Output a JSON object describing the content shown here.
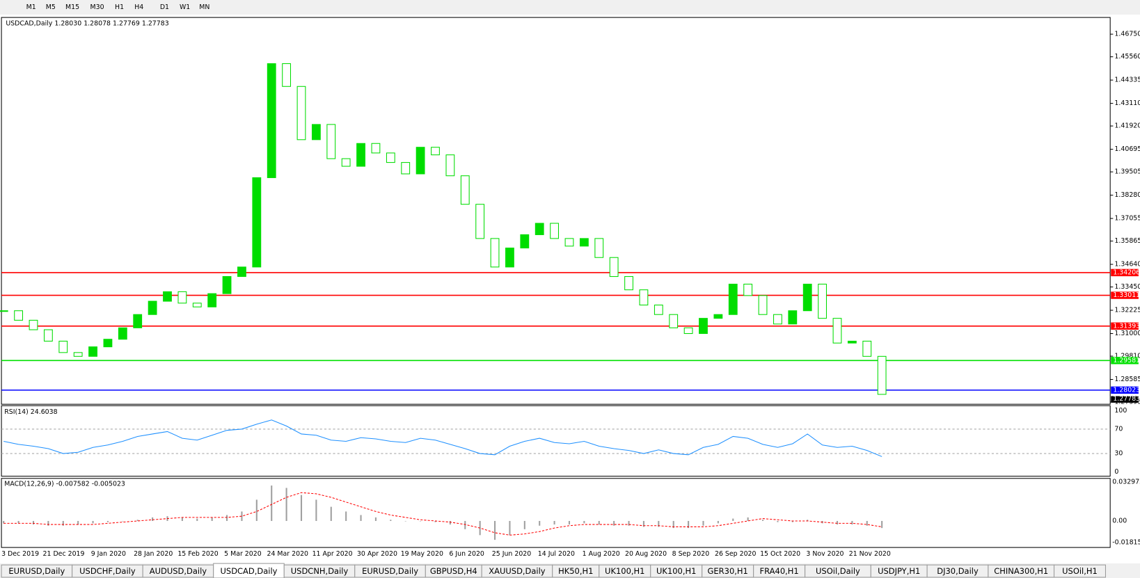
{
  "toolbar": {
    "timeframes": [
      "M1",
      "M5",
      "M15",
      "M30",
      "H1",
      "H4",
      "D1",
      "W1",
      "MN"
    ]
  },
  "chart_data": {
    "type": "candlestick",
    "symbol": "USDCAD,Daily",
    "ohlc": [
      "1.28030",
      "1.28078",
      "1.27769",
      "1.27783"
    ],
    "dates": [
      "3 Dec 2019",
      "21 Dec 2019",
      "9 Jan 2020",
      "28 Jan 2020",
      "15 Feb 2020",
      "5 Mar 2020",
      "24 Mar 2020",
      "11 Apr 2020",
      "30 Apr 2020",
      "19 May 2020",
      "6 Jun 2020",
      "25 Jun 2020",
      "14 Jul 2020",
      "1 Aug 2020",
      "20 Aug 2020",
      "8 Sep 2020",
      "26 Sep 2020",
      "15 Oct 2020",
      "3 Nov 2020",
      "21 Nov 2020"
    ],
    "close": [
      1.322,
      1.317,
      1.312,
      1.306,
      1.3,
      1.298,
      1.303,
      1.307,
      1.313,
      1.32,
      1.327,
      1.332,
      1.326,
      1.324,
      1.331,
      1.34,
      1.345,
      1.392,
      1.452,
      1.44,
      1.412,
      1.42,
      1.402,
      1.398,
      1.41,
      1.405,
      1.4,
      1.394,
      1.408,
      1.404,
      1.393,
      1.378,
      1.36,
      1.345,
      1.355,
      1.362,
      1.368,
      1.36,
      1.356,
      1.36,
      1.35,
      1.34,
      1.333,
      1.325,
      1.32,
      1.313,
      1.31,
      1.318,
      1.32,
      1.336,
      1.33,
      1.32,
      1.315,
      1.322,
      1.336,
      1.318,
      1.305,
      1.306,
      1.298,
      1.278
    ],
    "up_color": "#00dd00",
    "ylim": [
      1.27395,
      1.4675
    ],
    "yticks": [
      {
        "value": 1.4675,
        "label": "1.46750"
      },
      {
        "value": 1.4556,
        "label": "1.45560"
      },
      1.44335,
      {
        "value": 1.4311,
        "label": "1.43110"
      },
      {
        "value": 1.4192,
        "label": "1.41920"
      },
      1.40695,
      1.39505,
      {
        "value": 1.3828,
        "label": "1.38280"
      },
      1.37055,
      1.35865,
      {
        "value": 1.3464,
        "label": "1.34640"
      },
      {
        "value": 1.3345,
        "label": "1.33450"
      },
      1.32225,
      {
        "value": 1.31,
        "label": "1.31000"
      },
      {
        "value": 1.2981,
        "label": "1.29810"
      },
      1.28585,
      1.27395
    ],
    "levels": [
      {
        "value": 1.34206,
        "color": "#ff0000"
      },
      {
        "value": 1.33011,
        "color": "#ff0000"
      },
      {
        "value": 1.31393,
        "color": "#ff0000"
      },
      {
        "value": 1.29581,
        "color": "#00e000"
      },
      {
        "value": 1.28023,
        "color": "#0000ff"
      }
    ],
    "last": 1.27783,
    "rsi": {
      "title": "RSI(14) 24.6038",
      "color": "#1e90ff",
      "ylim": [
        0,
        100
      ],
      "yticks": [
        100,
        70,
        30,
        0
      ],
      "values": [
        50,
        45,
        42,
        38,
        30,
        32,
        40,
        44,
        50,
        58,
        62,
        66,
        55,
        52,
        60,
        68,
        70,
        78,
        85,
        75,
        62,
        60,
        52,
        50,
        56,
        54,
        50,
        48,
        55,
        52,
        45,
        38,
        30,
        28,
        42,
        50,
        55,
        48,
        46,
        50,
        42,
        38,
        35,
        30,
        36,
        30,
        28,
        40,
        45,
        58,
        55,
        45,
        40,
        46,
        62,
        44,
        40,
        42,
        35,
        25
      ]
    },
    "macd": {
      "title": "MACD(12,26,9) -0.007582 -0.005023",
      "ylim": [
        -0.018154,
        0.032972
      ],
      "yticks": [
        0.032972,
        {
          "value": 0,
          "label": "0.00"
        },
        -0.018154
      ],
      "signal_color": "#ff0000",
      "histogram": [
        -0.002,
        -0.002,
        -0.003,
        -0.004,
        -0.004,
        -0.003,
        -0.002,
        -0.001,
        0.0,
        0.001,
        0.003,
        0.004,
        0.003,
        0.002,
        0.003,
        0.005,
        0.008,
        0.018,
        0.03,
        0.028,
        0.022,
        0.018,
        0.012,
        0.008,
        0.005,
        0.003,
        0.001,
        0.0,
        0.0,
        -0.001,
        -0.003,
        -0.007,
        -0.012,
        -0.016,
        -0.012,
        -0.007,
        -0.004,
        -0.003,
        -0.003,
        -0.002,
        -0.003,
        -0.004,
        -0.004,
        -0.005,
        -0.005,
        -0.006,
        -0.006,
        -0.004,
        -0.002,
        0.002,
        0.003,
        0.001,
        -0.001,
        -0.001,
        0.001,
        -0.002,
        -0.003,
        -0.003,
        -0.004,
        -0.006
      ],
      "signal": [
        -0.002,
        -0.002,
        -0.002,
        -0.003,
        -0.003,
        -0.003,
        -0.003,
        -0.002,
        -0.001,
        0.0,
        0.001,
        0.002,
        0.003,
        0.003,
        0.003,
        0.003,
        0.004,
        0.008,
        0.014,
        0.02,
        0.024,
        0.023,
        0.02,
        0.016,
        0.012,
        0.008,
        0.005,
        0.003,
        0.001,
        0.0,
        -0.001,
        -0.003,
        -0.006,
        -0.01,
        -0.012,
        -0.011,
        -0.009,
        -0.006,
        -0.004,
        -0.003,
        -0.003,
        -0.003,
        -0.003,
        -0.004,
        -0.004,
        -0.005,
        -0.005,
        -0.005,
        -0.004,
        -0.002,
        0.0,
        0.002,
        0.001,
        0.0,
        0.0,
        -0.001,
        -0.002,
        -0.002,
        -0.003,
        -0.005
      ]
    }
  },
  "tabs": {
    "active": 3,
    "items": [
      "EURUSD,Daily",
      "USDCHF,Daily",
      "AUDUSD,Daily",
      "USDCAD,Daily",
      "USDCNH,Daily",
      "EURUSD,Daily",
      "GBPUSD,H4",
      "XAUUSD,Daily",
      "HK50,H1",
      "UK100,H1",
      "UK100,H1",
      "GER30,H1",
      "FRA40,H1",
      "USOil,Daily",
      "USDJPY,H1",
      "DJ30,Daily",
      "CHINA300,H1",
      "USOil,H1"
    ]
  }
}
